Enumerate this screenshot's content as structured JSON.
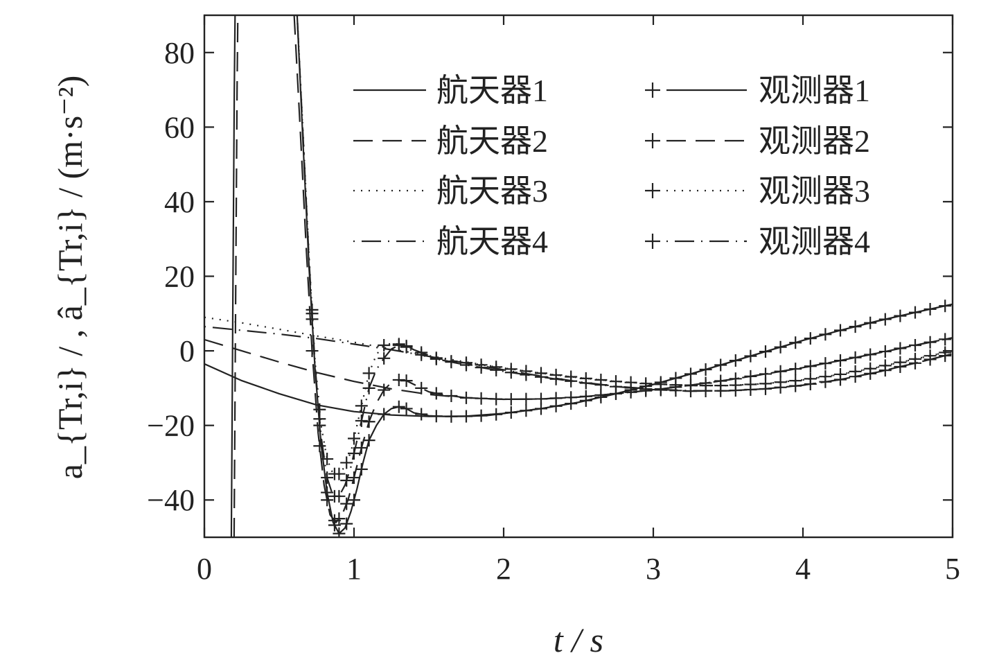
{
  "chart_data": {
    "type": "line",
    "title": "",
    "xlabel": "t / s",
    "ylabel": "a_{Tr,i} / , â_{Tr,i} / (m·s⁻²)",
    "xlim": [
      0,
      5
    ],
    "ylim": [
      -50,
      90
    ],
    "xticks": [
      0,
      1,
      2,
      3,
      4,
      5
    ],
    "yticks": [
      -40,
      -20,
      0,
      20,
      40,
      60,
      80
    ],
    "xtick_labels": [
      "0",
      "1",
      "2",
      "3",
      "4",
      "5"
    ],
    "ytick_labels": [
      "−40",
      "−20",
      "0",
      "20",
      "40",
      "60",
      "80"
    ],
    "grid": false,
    "legend_position": "top-right",
    "series": [
      {
        "name": "航天器1",
        "role": "spacecraft",
        "dash": "solid",
        "marker": "none",
        "x": [
          0,
          0.25,
          0.5,
          0.75,
          1.0,
          1.25,
          1.5,
          1.75,
          2.0,
          2.25,
          2.5,
          2.75,
          3.0,
          3.25,
          3.5,
          3.75,
          4.0,
          4.25,
          4.5,
          4.75,
          5.0
        ],
        "y": [
          -3.5,
          -8,
          -11.5,
          -14.5,
          -16.3,
          -17.2,
          -17.6,
          -17.5,
          -16.8,
          -15.5,
          -13.8,
          -11.5,
          -9,
          -6.2,
          -3.2,
          -0.2,
          2.8,
          5.5,
          8,
          10.3,
          12.5
        ]
      },
      {
        "name": "航天器2",
        "role": "spacecraft",
        "dash": "dashed",
        "marker": "none",
        "x": [
          0,
          0.25,
          0.5,
          0.75,
          1.0,
          1.25,
          1.5,
          1.75,
          2.0,
          2.25,
          2.5,
          2.75,
          3.0,
          3.25,
          3.5,
          3.75,
          4.0,
          4.25,
          4.5,
          4.75,
          5.0
        ],
        "y": [
          3,
          0,
          -3,
          -5.8,
          -8.2,
          -10.2,
          -11.7,
          -12.6,
          -13,
          -12.9,
          -12.4,
          -11.5,
          -10.5,
          -9.2,
          -7.8,
          -6.2,
          -4.5,
          -2.6,
          -0.6,
          1.5,
          3.5
        ]
      },
      {
        "name": "航天器3",
        "role": "spacecraft",
        "dash": "dotted",
        "marker": "none",
        "x": [
          0,
          0.25,
          0.5,
          0.75,
          1.0,
          1.25,
          1.5,
          1.75,
          2.0,
          2.25,
          2.5,
          2.75,
          3.0,
          3.25,
          3.5,
          3.75,
          4.0,
          4.25,
          4.5,
          4.75,
          5.0
        ],
        "y": [
          9,
          7.5,
          5.8,
          4,
          2.3,
          0.5,
          -1.3,
          -3,
          -4.6,
          -6,
          -7.2,
          -8.2,
          -8.9,
          -9.3,
          -9.3,
          -8.8,
          -7.8,
          -6.3,
          -4.4,
          -2.2,
          0
        ]
      },
      {
        "name": "航天器4",
        "role": "spacecraft",
        "dash": "dashdot",
        "marker": "none",
        "x": [
          0,
          0.25,
          0.5,
          0.75,
          1.0,
          1.25,
          1.5,
          1.75,
          2.0,
          2.25,
          2.5,
          2.75,
          3.0,
          3.25,
          3.5,
          3.75,
          4.0,
          4.25,
          4.5,
          4.75,
          5.0
        ],
        "y": [
          6.5,
          5.5,
          4.5,
          3.3,
          1.8,
          0.3,
          -1.5,
          -3.3,
          -5.1,
          -6.8,
          -8.3,
          -9.5,
          -10.3,
          -10.7,
          -10.7,
          -10.2,
          -9.2,
          -7.7,
          -5.7,
          -3.3,
          -0.8
        ]
      },
      {
        "name": "观测器1",
        "role": "observer",
        "dash": "solid",
        "marker": "plus",
        "x": [
          0.62,
          0.66,
          0.7,
          0.74,
          0.78,
          0.82,
          0.86,
          0.9,
          0.94,
          0.98,
          1.02,
          1.06,
          1.1,
          1.15,
          1.2,
          1.25,
          1.3,
          1.35,
          1.4,
          1.5,
          1.6,
          1.7,
          1.8,
          1.9,
          2.0,
          2.25,
          2.5,
          2.75,
          3.0,
          3.25,
          3.5,
          3.75,
          4.0,
          4.25,
          4.5,
          4.75,
          5.0
        ],
        "y": [
          90,
          55,
          22,
          -5,
          -25,
          -38,
          -46,
          -49,
          -47.5,
          -43,
          -37,
          -30,
          -24,
          -20,
          -17,
          -15.5,
          -15,
          -15.5,
          -16.6,
          -17.4,
          -17.6,
          -17.6,
          -17.5,
          -17.3,
          -16.8,
          -15.5,
          -13.8,
          -11.5,
          -9,
          -6.2,
          -3.2,
          -0.2,
          2.8,
          5.5,
          8,
          10.3,
          12.5
        ],
        "marker_x": [
          0.72,
          0.77,
          0.82,
          0.87,
          0.9,
          0.95,
          1.0,
          1.05,
          1.1,
          1.2,
          1.3,
          1.35,
          1.45,
          1.55,
          1.65,
          1.75,
          1.85,
          1.95,
          2.05,
          2.15,
          2.25,
          2.35,
          2.45,
          2.55,
          2.65,
          2.75,
          2.85,
          2.95,
          3.05,
          3.15,
          3.25,
          3.35,
          3.45,
          3.55,
          3.65,
          3.75,
          3.85,
          3.95,
          4.05,
          4.15,
          4.25,
          4.35,
          4.45,
          4.55,
          4.65,
          4.75,
          4.85,
          4.95
        ]
      },
      {
        "name": "观测器2",
        "role": "observer",
        "dash": "dashed",
        "marker": "plus",
        "x": [
          0.6,
          0.64,
          0.68,
          0.72,
          0.76,
          0.8,
          0.84,
          0.88,
          0.92,
          0.96,
          1.0,
          1.05,
          1.1,
          1.15,
          1.2,
          1.25,
          1.3,
          1.35,
          1.4,
          1.5,
          1.6,
          1.75,
          2.0,
          2.25,
          2.5,
          2.75,
          3.0,
          3.25,
          3.5,
          3.75,
          4.0,
          4.25,
          4.5,
          4.75,
          5.0
        ],
        "y": [
          90,
          60,
          28,
          0,
          -22,
          -36,
          -44,
          -46,
          -44,
          -40,
          -34,
          -26,
          -19,
          -14,
          -10.5,
          -8.5,
          -7.8,
          -8,
          -9,
          -11,
          -11.8,
          -12.6,
          -13,
          -12.9,
          -12.4,
          -11.5,
          -10.5,
          -9.2,
          -7.8,
          -6.2,
          -4.5,
          -2.6,
          -0.6,
          1.5,
          3.5
        ],
        "marker_x": [
          0.72,
          0.77,
          0.82,
          0.87,
          0.9,
          0.95,
          1.0,
          1.05,
          1.1,
          1.2,
          1.3,
          1.35,
          1.45,
          1.55,
          1.65,
          1.75,
          1.85,
          1.95,
          2.05,
          2.15,
          2.25,
          2.35,
          2.45,
          2.55,
          2.65,
          2.75,
          2.85,
          2.95,
          3.05,
          3.15,
          3.25,
          3.35,
          3.45,
          3.55,
          3.65,
          3.75,
          3.85,
          3.95,
          4.05,
          4.15,
          4.25,
          4.35,
          4.45,
          4.55,
          4.65,
          4.75,
          4.85,
          4.95
        ]
      },
      {
        "name": "观测器3",
        "role": "observer",
        "dash": "dotted",
        "marker": "plus",
        "x": [
          0.62,
          0.66,
          0.7,
          0.74,
          0.78,
          0.82,
          0.86,
          0.9,
          0.94,
          0.98,
          1.02,
          1.06,
          1.1,
          1.15,
          1.2,
          1.25,
          1.3,
          1.35,
          1.4,
          1.5,
          1.6,
          1.75,
          2.0,
          2.25,
          2.5,
          2.75,
          3.0,
          3.25,
          3.5,
          3.75,
          4.0,
          4.25,
          4.5,
          4.75,
          5.0
        ],
        "y": [
          90,
          58,
          25,
          -3,
          -20,
          -29,
          -33,
          -33,
          -31,
          -27,
          -20,
          -13,
          -6,
          -1,
          1.5,
          2,
          1.8,
          1,
          -0.3,
          -1.8,
          -2.6,
          -3.2,
          -4.6,
          -6,
          -7.2,
          -8.2,
          -8.9,
          -9.3,
          -9.3,
          -8.8,
          -7.8,
          -6.3,
          -4.4,
          -2.2,
          0
        ],
        "marker_x": [
          0.72,
          0.77,
          0.82,
          0.87,
          0.9,
          0.95,
          1.0,
          1.05,
          1.1,
          1.2,
          1.3,
          1.35,
          1.45,
          1.55,
          1.65,
          1.75,
          1.85,
          1.95,
          2.05,
          2.15,
          2.25,
          2.35,
          2.45,
          2.55,
          2.65,
          2.75,
          2.85,
          2.95,
          3.05,
          3.15,
          3.25,
          3.35,
          3.45,
          3.55,
          3.65,
          3.75,
          3.85,
          3.95,
          4.05,
          4.15,
          4.25,
          4.35,
          4.45,
          4.55,
          4.65,
          4.75,
          4.85,
          4.95
        ]
      },
      {
        "name": "观测器4",
        "role": "observer",
        "dash": "dashdot",
        "marker": "plus",
        "x": [
          0.62,
          0.66,
          0.7,
          0.74,
          0.78,
          0.82,
          0.86,
          0.9,
          0.94,
          0.98,
          1.02,
          1.06,
          1.1,
          1.15,
          1.2,
          1.25,
          1.3,
          1.35,
          1.4,
          1.5,
          1.6,
          1.75,
          2.0,
          2.25,
          2.5,
          2.75,
          3.0,
          3.25,
          3.5,
          3.75,
          4.0,
          4.25,
          4.5,
          4.75,
          5.0
        ],
        "y": [
          90,
          57,
          24,
          -4,
          -23,
          -34,
          -39,
          -39,
          -36,
          -31,
          -24,
          -17,
          -10,
          -5,
          -2,
          0.5,
          1.5,
          1.3,
          0.3,
          -1.2,
          -2.6,
          -3.8,
          -5.5,
          -7,
          -8.4,
          -9.6,
          -10.4,
          -10.8,
          -10.7,
          -10.2,
          -9.2,
          -7.7,
          -5.7,
          -3.3,
          -0.8
        ],
        "marker_x": [
          0.72,
          0.77,
          0.82,
          0.87,
          0.9,
          0.95,
          1.0,
          1.05,
          1.1,
          1.2,
          1.3,
          1.35,
          1.45,
          1.55,
          1.65,
          1.75,
          1.85,
          1.95,
          2.05,
          2.15,
          2.25,
          2.35,
          2.45,
          2.55,
          2.65,
          2.75,
          2.85,
          2.95,
          3.05,
          3.15,
          3.25,
          3.35,
          3.45,
          3.55,
          3.65,
          3.75,
          3.85,
          3.95,
          4.05,
          4.15,
          4.25,
          4.35,
          4.45,
          4.55,
          4.65,
          4.75,
          4.85,
          4.95
        ]
      }
    ],
    "transient_spike": {
      "x": [
        0.18,
        0.185,
        0.19,
        0.195,
        0.2,
        0.205,
        0.21
      ],
      "y": [
        -50,
        -20,
        10,
        40,
        70,
        90,
        90
      ]
    }
  }
}
